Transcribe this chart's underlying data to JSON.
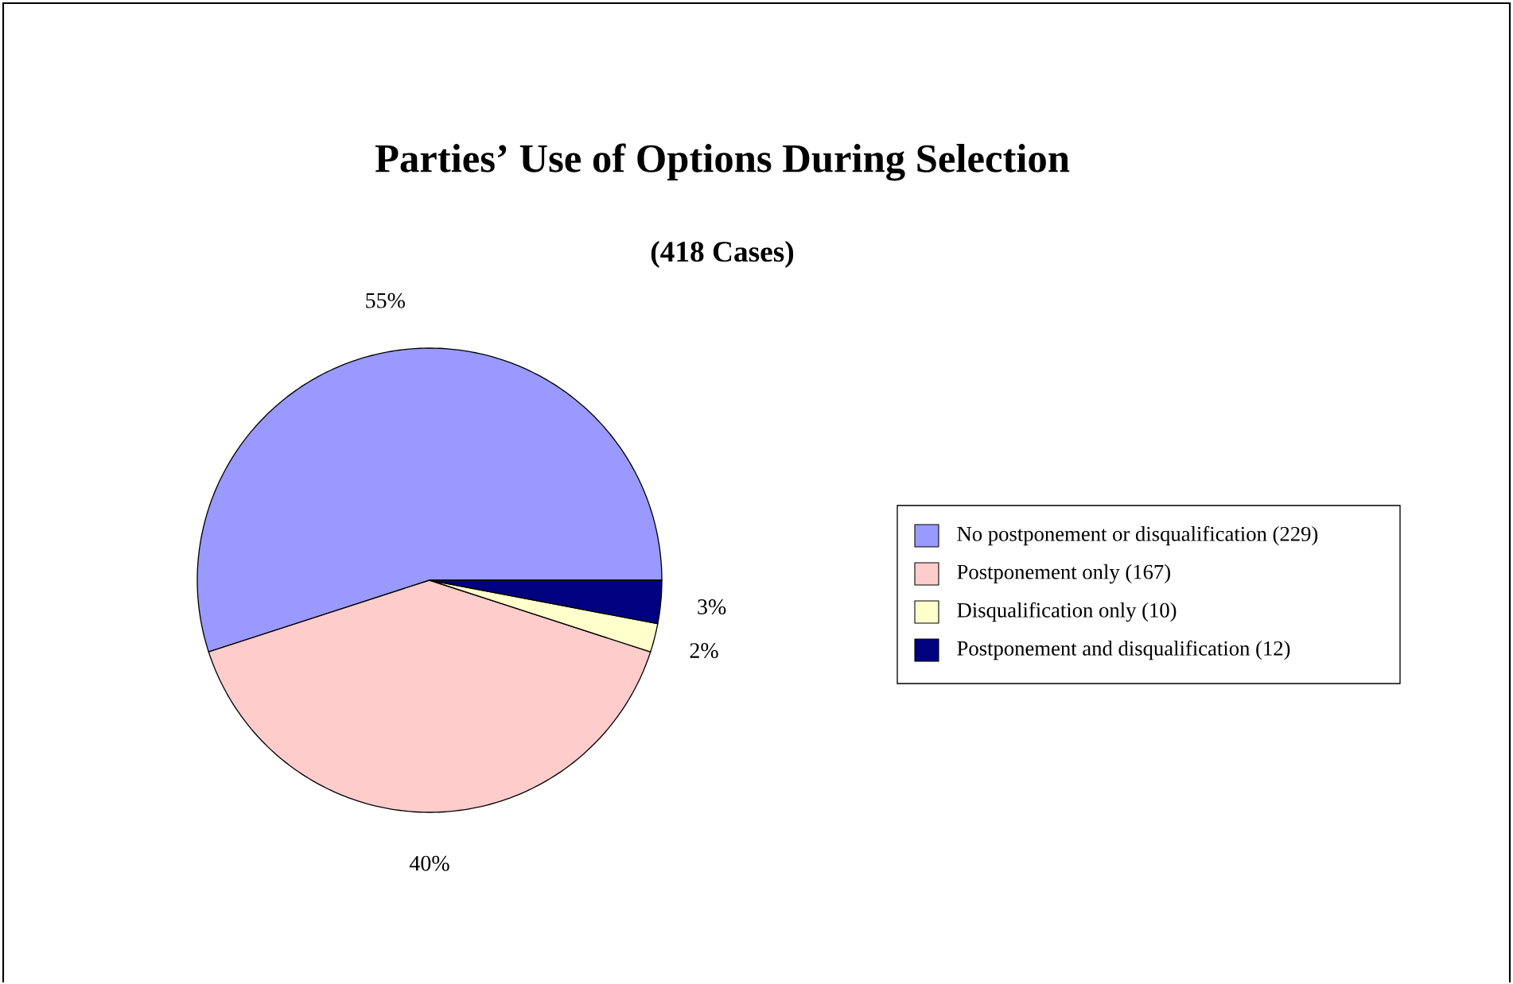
{
  "chart_data": {
    "type": "pie",
    "title": "Parties’ Use of Options During Selection",
    "subtitle": "(418 Cases)",
    "categories": [
      "No postponement or disqualification (229)",
      "Postponement only (167)",
      "Disqualification only (10)",
      "Postponement and disqualification (12)"
    ],
    "values": [
      55,
      40,
      2,
      3
    ],
    "value_labels": [
      "55%",
      "40%",
      "2%",
      "3%"
    ],
    "colors": [
      "#9999ff",
      "#ffcccc",
      "#ffffcc",
      "#000080"
    ],
    "legend": "right"
  }
}
